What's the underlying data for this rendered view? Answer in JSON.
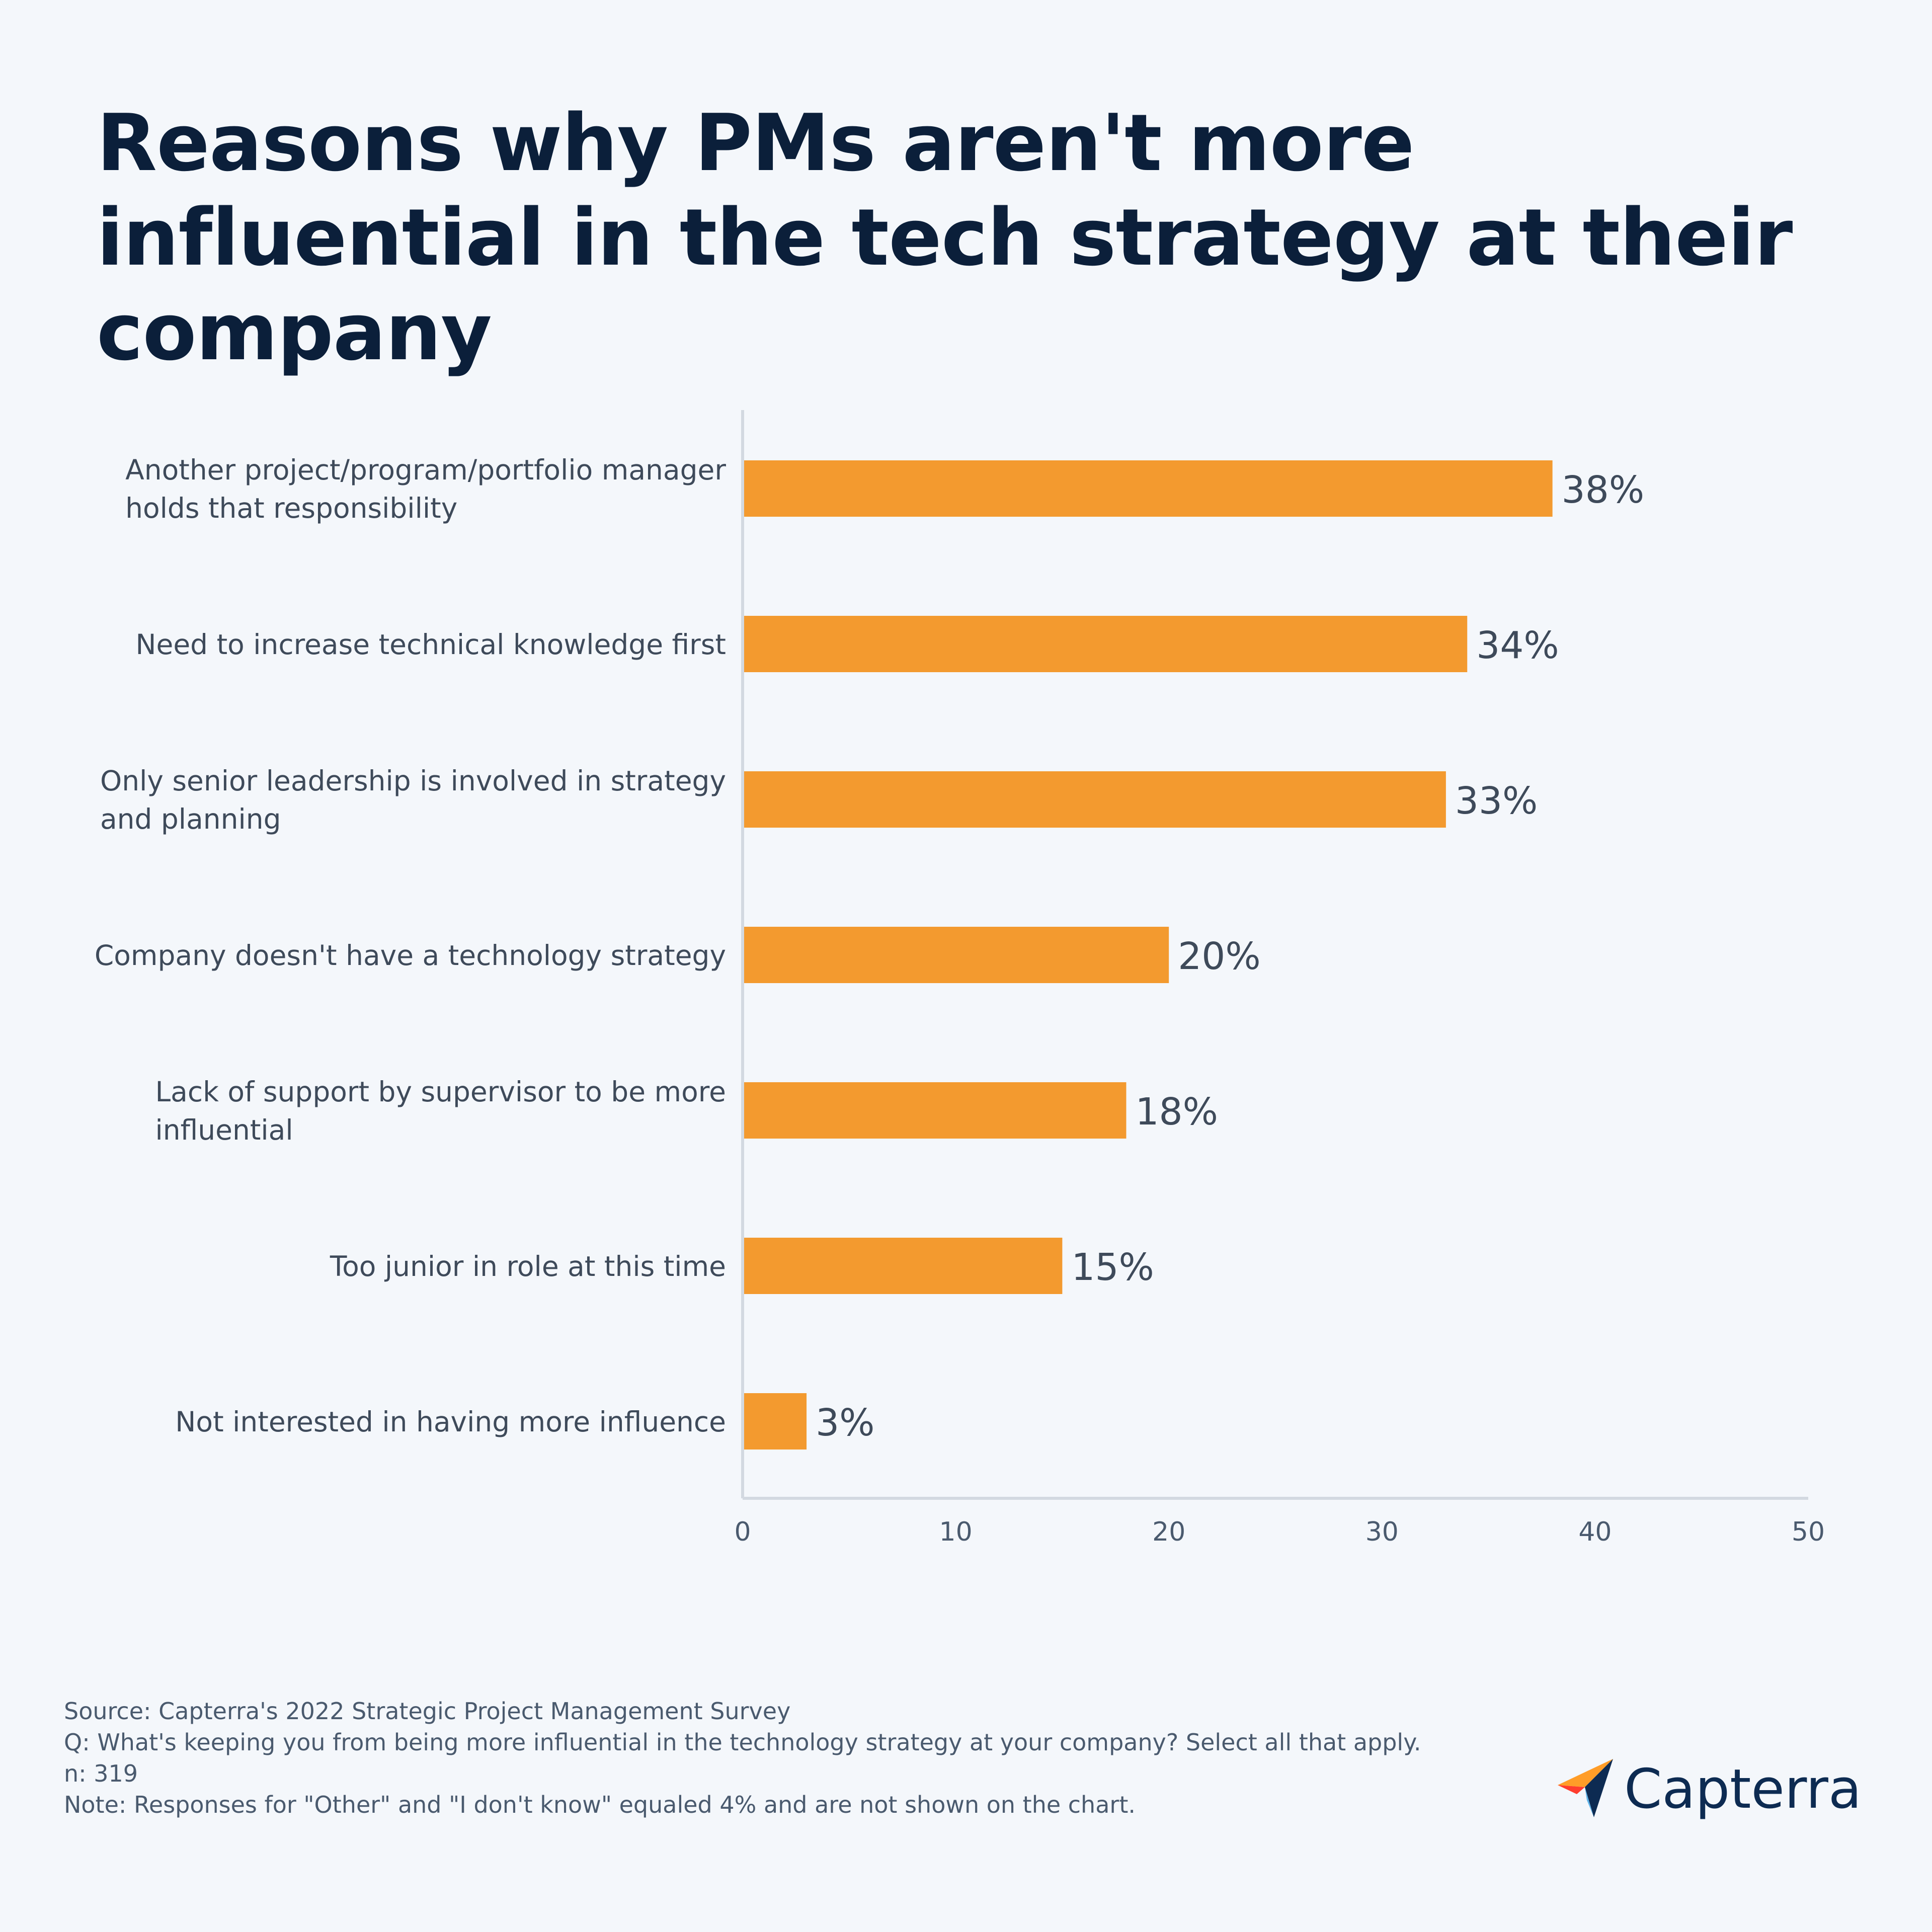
{
  "title": "Reasons why PMs aren't more influential in the tech strategy at their company",
  "chart_data": {
    "type": "bar",
    "orientation": "horizontal",
    "categories": [
      [
        "Another project/program/portfolio manager",
        "holds that responsibility"
      ],
      [
        "Need to increase technical knowledge first"
      ],
      [
        "Only senior leadership is involved in strategy",
        "and planning"
      ],
      [
        "Company doesn't have a technology strategy"
      ],
      [
        "Lack of support by supervisor to be more",
        "influential"
      ],
      [
        "Too junior in role at this time"
      ],
      [
        "Not interested in having more influence"
      ]
    ],
    "values": [
      38,
      34,
      33,
      20,
      18,
      15,
      3
    ],
    "data_labels": [
      "38%",
      "34%",
      "33%",
      "20%",
      "18%",
      "15%",
      "3%"
    ],
    "xlim": [
      0,
      50
    ],
    "xticks": [
      0,
      10,
      20,
      30,
      40,
      50
    ],
    "bar_color": "#f39a2f",
    "grid": false
  },
  "footer": {
    "source": "Source: Capterra's 2022 Strategic Project Management Survey",
    "question": "Q: What's keeping you from being more influential in the technology strategy at your company? Select all that apply.",
    "n": "n: 319",
    "note": "Note: Responses for \"Other\" and \"I don't know\" equaled 4% and are not shown on the chart."
  },
  "logo": {
    "text": "Capterra",
    "icon": "capterra-arrow-icon"
  }
}
